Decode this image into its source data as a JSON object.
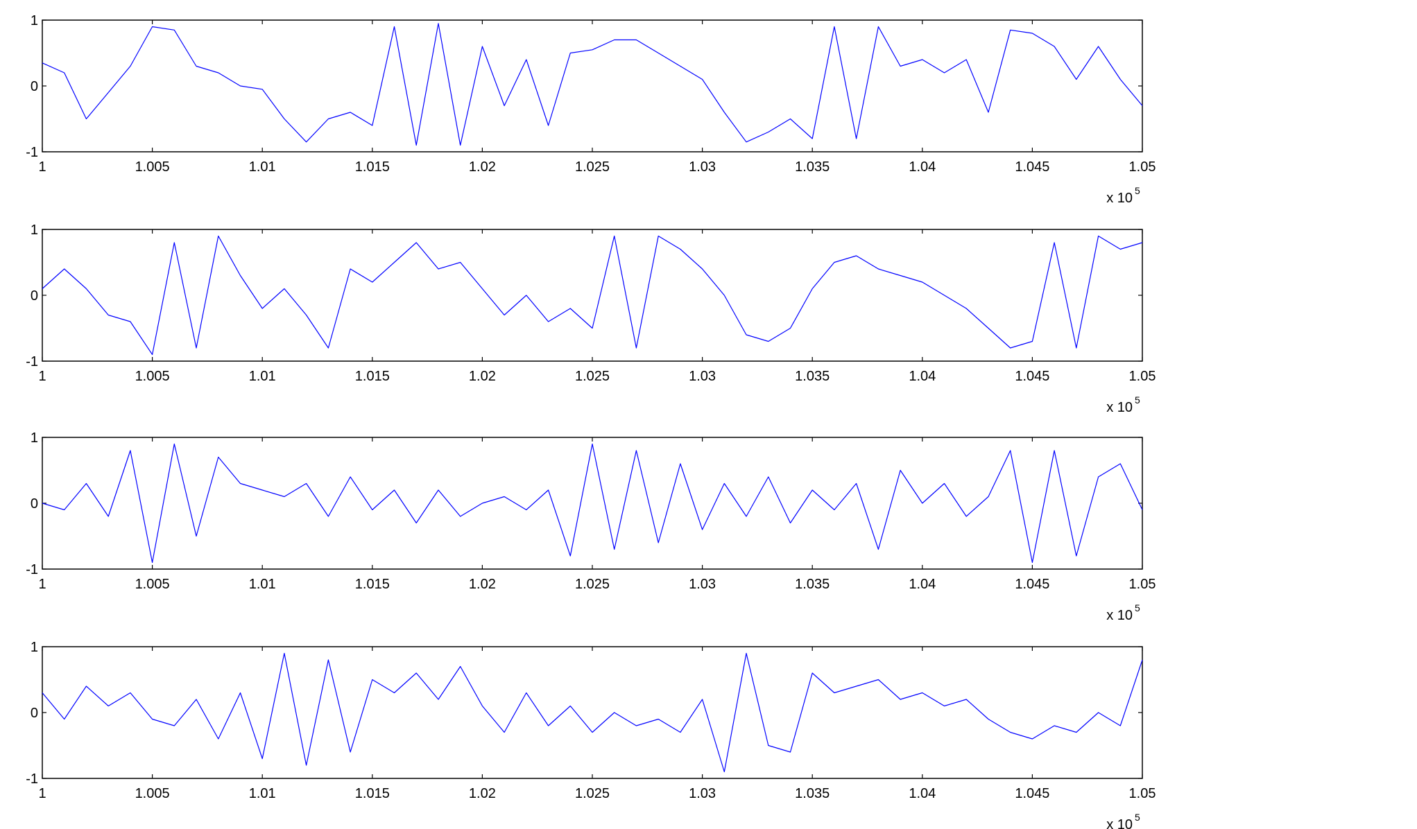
{
  "chart_data": [
    {
      "type": "line",
      "title": "",
      "xlabel": "",
      "ylabel": "",
      "x_exponent_label": "x 10",
      "x_exponent_power": "5",
      "xlim": [
        1.0,
        1.05
      ],
      "ylim": [
        -1,
        1
      ],
      "x_ticks": [
        "1",
        "1.005",
        "1.01",
        "1.015",
        "1.02",
        "1.025",
        "1.03",
        "1.035",
        "1.04",
        "1.045",
        "1.05"
      ],
      "y_ticks": [
        "-1",
        "0",
        "1"
      ],
      "grid": false,
      "line_color": "#0000ff",
      "series": [
        {
          "x": [
            1.0,
            1.001,
            1.002,
            1.003,
            1.004,
            1.005,
            1.006,
            1.007,
            1.008,
            1.009,
            1.01,
            1.011,
            1.012,
            1.013,
            1.014,
            1.015,
            1.016,
            1.017,
            1.018,
            1.019,
            1.02,
            1.021,
            1.022,
            1.023,
            1.024,
            1.025,
            1.026,
            1.027,
            1.028,
            1.029,
            1.03,
            1.031,
            1.032,
            1.033,
            1.034,
            1.035,
            1.036,
            1.037,
            1.038,
            1.039,
            1.04,
            1.041,
            1.042,
            1.043,
            1.044,
            1.045,
            1.046,
            1.047,
            1.048,
            1.049,
            1.05
          ],
          "y": [
            0.35,
            0.2,
            -0.5,
            -0.1,
            0.3,
            0.9,
            0.85,
            0.3,
            0.2,
            0.0,
            -0.05,
            -0.5,
            -0.85,
            -0.5,
            -0.4,
            -0.6,
            0.9,
            -0.9,
            0.95,
            -0.9,
            0.6,
            -0.3,
            0.4,
            -0.6,
            0.5,
            0.55,
            0.7,
            0.7,
            0.5,
            0.3,
            0.1,
            -0.4,
            -0.85,
            -0.7,
            -0.5,
            -0.8,
            0.9,
            -0.8,
            0.9,
            0.3,
            0.4,
            0.2,
            0.4,
            -0.4,
            0.85,
            0.8,
            0.6,
            0.1,
            0.6,
            0.1,
            -0.3
          ]
        }
      ]
    },
    {
      "type": "line",
      "title": "",
      "xlabel": "",
      "ylabel": "",
      "x_exponent_label": "x 10",
      "x_exponent_power": "5",
      "xlim": [
        1.0,
        1.05
      ],
      "ylim": [
        -1,
        1
      ],
      "x_ticks": [
        "1",
        "1.005",
        "1.01",
        "1.015",
        "1.02",
        "1.025",
        "1.03",
        "1.035",
        "1.04",
        "1.045",
        "1.05"
      ],
      "y_ticks": [
        "-1",
        "0",
        "1"
      ],
      "grid": false,
      "line_color": "#0000ff",
      "series": [
        {
          "x": [
            1.0,
            1.001,
            1.002,
            1.003,
            1.004,
            1.005,
            1.006,
            1.007,
            1.008,
            1.009,
            1.01,
            1.011,
            1.012,
            1.013,
            1.014,
            1.015,
            1.016,
            1.017,
            1.018,
            1.019,
            1.02,
            1.021,
            1.022,
            1.023,
            1.024,
            1.025,
            1.026,
            1.027,
            1.028,
            1.029,
            1.03,
            1.031,
            1.032,
            1.033,
            1.034,
            1.035,
            1.036,
            1.037,
            1.038,
            1.039,
            1.04,
            1.041,
            1.042,
            1.043,
            1.044,
            1.045,
            1.046,
            1.047,
            1.048,
            1.049,
            1.05
          ],
          "y": [
            0.1,
            0.4,
            0.1,
            -0.3,
            -0.4,
            -0.9,
            0.8,
            -0.8,
            0.9,
            0.3,
            -0.2,
            0.1,
            -0.3,
            -0.8,
            0.4,
            0.2,
            0.5,
            0.8,
            0.4,
            0.5,
            0.1,
            -0.3,
            0.0,
            -0.4,
            -0.2,
            -0.5,
            0.9,
            -0.8,
            0.9,
            0.7,
            0.4,
            0.0,
            -0.6,
            -0.7,
            -0.5,
            0.1,
            0.5,
            0.6,
            0.4,
            0.3,
            0.2,
            0.0,
            -0.2,
            -0.5,
            -0.8,
            -0.7,
            0.8,
            -0.8,
            0.9,
            0.7,
            0.8
          ]
        }
      ]
    },
    {
      "type": "line",
      "title": "",
      "xlabel": "",
      "ylabel": "",
      "x_exponent_label": "x 10",
      "x_exponent_power": "5",
      "xlim": [
        1.0,
        1.05
      ],
      "ylim": [
        -1,
        1
      ],
      "x_ticks": [
        "1",
        "1.005",
        "1.01",
        "1.015",
        "1.02",
        "1.025",
        "1.03",
        "1.035",
        "1.04",
        "1.045",
        "1.05"
      ],
      "y_ticks": [
        "-1",
        "0",
        "1"
      ],
      "grid": false,
      "line_color": "#0000ff",
      "series": [
        {
          "x": [
            1.0,
            1.001,
            1.002,
            1.003,
            1.004,
            1.005,
            1.006,
            1.007,
            1.008,
            1.009,
            1.01,
            1.011,
            1.012,
            1.013,
            1.014,
            1.015,
            1.016,
            1.017,
            1.018,
            1.019,
            1.02,
            1.021,
            1.022,
            1.023,
            1.024,
            1.025,
            1.026,
            1.027,
            1.028,
            1.029,
            1.03,
            1.031,
            1.032,
            1.033,
            1.034,
            1.035,
            1.036,
            1.037,
            1.038,
            1.039,
            1.04,
            1.041,
            1.042,
            1.043,
            1.044,
            1.045,
            1.046,
            1.047,
            1.048,
            1.049,
            1.05
          ],
          "y": [
            0.0,
            -0.1,
            0.3,
            -0.2,
            0.8,
            -0.9,
            0.9,
            -0.5,
            0.7,
            0.3,
            0.2,
            0.1,
            0.3,
            -0.2,
            0.4,
            -0.1,
            0.2,
            -0.3,
            0.2,
            -0.2,
            0.0,
            0.1,
            -0.1,
            0.2,
            -0.8,
            0.9,
            -0.7,
            0.8,
            -0.6,
            0.6,
            -0.4,
            0.3,
            -0.2,
            0.4,
            -0.3,
            0.2,
            -0.1,
            0.3,
            -0.7,
            0.5,
            0.0,
            0.3,
            -0.2,
            0.1,
            0.8,
            -0.9,
            0.8,
            -0.8,
            0.4,
            0.6,
            -0.1
          ]
        }
      ]
    },
    {
      "type": "line",
      "title": "",
      "xlabel": "",
      "ylabel": "",
      "x_exponent_label": "x 10",
      "x_exponent_power": "5",
      "xlim": [
        1.0,
        1.05
      ],
      "ylim": [
        -1,
        1
      ],
      "x_ticks": [
        "1",
        "1.005",
        "1.01",
        "1.015",
        "1.02",
        "1.025",
        "1.03",
        "1.035",
        "1.04",
        "1.045",
        "1.05"
      ],
      "y_ticks": [
        "-1",
        "0",
        "1"
      ],
      "grid": false,
      "line_color": "#0000ff",
      "series": [
        {
          "x": [
            1.0,
            1.001,
            1.002,
            1.003,
            1.004,
            1.005,
            1.006,
            1.007,
            1.008,
            1.009,
            1.01,
            1.011,
            1.012,
            1.013,
            1.014,
            1.015,
            1.016,
            1.017,
            1.018,
            1.019,
            1.02,
            1.021,
            1.022,
            1.023,
            1.024,
            1.025,
            1.026,
            1.027,
            1.028,
            1.029,
            1.03,
            1.031,
            1.032,
            1.033,
            1.034,
            1.035,
            1.036,
            1.037,
            1.038,
            1.039,
            1.04,
            1.041,
            1.042,
            1.043,
            1.044,
            1.045,
            1.046,
            1.047,
            1.048,
            1.049,
            1.05
          ],
          "y": [
            0.3,
            -0.1,
            0.4,
            0.1,
            0.3,
            -0.1,
            -0.2,
            0.2,
            -0.4,
            0.3,
            -0.7,
            0.9,
            -0.8,
            0.8,
            -0.6,
            0.5,
            0.3,
            0.6,
            0.2,
            0.7,
            0.1,
            -0.3,
            0.3,
            -0.2,
            0.1,
            -0.3,
            0.0,
            -0.2,
            -0.1,
            -0.3,
            0.2,
            -0.9,
            0.9,
            -0.5,
            -0.6,
            0.6,
            0.3,
            0.4,
            0.5,
            0.2,
            0.3,
            0.1,
            0.2,
            -0.1,
            -0.3,
            -0.4,
            -0.2,
            -0.3,
            0.0,
            -0.2,
            0.8
          ]
        }
      ]
    }
  ]
}
